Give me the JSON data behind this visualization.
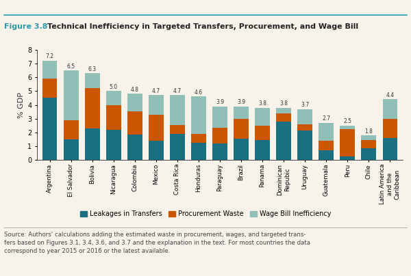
{
  "title_prefix": "Figure 3.8",
  "title_text": "Technical Inefficiency in Targeted Transfers, Procurement, and Wage Bill",
  "categories": [
    "Argentina",
    "El Salvador",
    "Bolivia",
    "Nicaragua",
    "Colombia",
    "Mexico",
    "Costa Rica",
    "Honduras",
    "Paraguay",
    "Brazil",
    "Panama",
    "Dominican\nRepubic",
    "Uruguay",
    "Guatemala",
    "Peru",
    "Chile",
    "Latin America\nand the\nCaribbean"
  ],
  "totals": [
    7.2,
    6.5,
    6.3,
    5.0,
    4.8,
    4.7,
    4.7,
    4.6,
    3.9,
    3.9,
    3.8,
    3.8,
    3.7,
    2.7,
    2.5,
    1.8,
    4.4
  ],
  "leakages": [
    4.5,
    1.5,
    2.3,
    2.2,
    1.85,
    1.4,
    1.9,
    1.25,
    1.2,
    1.55,
    1.45,
    2.8,
    2.15,
    0.7,
    0.25,
    0.85,
    1.6
  ],
  "procurement": [
    1.4,
    1.4,
    2.9,
    1.8,
    1.7,
    1.9,
    0.65,
    0.65,
    1.15,
    1.45,
    1.05,
    0.6,
    0.45,
    0.7,
    2.0,
    0.6,
    1.4
  ],
  "wagebill": [
    1.3,
    3.6,
    1.1,
    1.0,
    1.25,
    1.4,
    2.15,
    2.7,
    1.55,
    0.9,
    1.3,
    0.4,
    1.1,
    1.3,
    0.25,
    0.35,
    1.4
  ],
  "color_leakages": "#1a7080",
  "color_procurement": "#cc5500",
  "color_wagebill": "#90bfb8",
  "ylabel": "% GDP",
  "ylim": [
    0,
    8
  ],
  "yticks": [
    0,
    1,
    2,
    3,
    4,
    5,
    6,
    7,
    8
  ],
  "legend_labels": [
    "Leakages in Transfers",
    "Procurement Waste",
    "Wage Bill Inefficiency"
  ],
  "source_text": "Source: Authors' calculations adding the estimated waste in procurement, wages, and targeted trans-\nfers based on Figures 3.1, 3.4, 3.6, and 3.7 and the explanation in the text. For most countries the data\ncorrespond to year 2015 or 2016 or the latest available.",
  "figure_bg": "#f7f3eb",
  "title_teal": "#2a9aaa",
  "title_prefix_color": "#2a9aaa"
}
